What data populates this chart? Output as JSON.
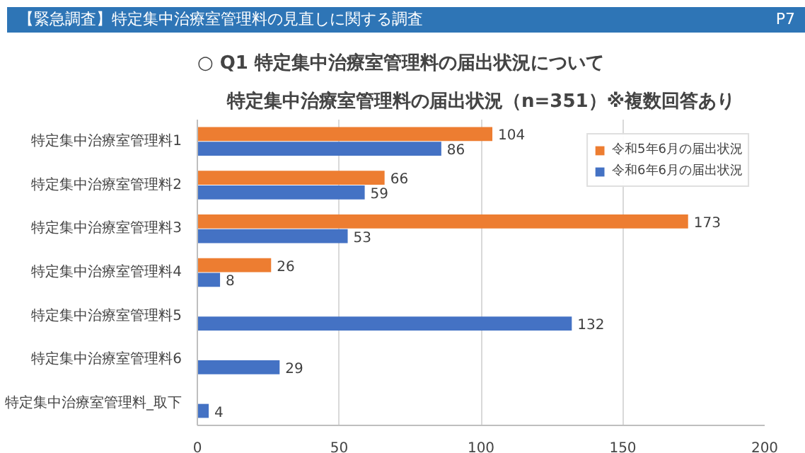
{
  "chart_data": {
    "type": "bar",
    "orientation": "horizontal",
    "title": "特定集中治療室管理料の届出状況（n=351）※複数回答あり",
    "subtitle": "○ Q1 特定集中治療室管理料の届出状況について",
    "annotations": [
      "【緊急調査】特定集中治療室管理料の見直しに関する調査",
      "P7"
    ],
    "categories": [
      "特定集中治療室管理料1",
      "特定集中治療室管理料2",
      "特定集中治療室管理料3",
      "特定集中治療室管理料4",
      "特定集中治療室管理料5",
      "特定集中治療室管理料6",
      "特定集中治療室管理料_取下"
    ],
    "series": [
      {
        "name": "令和5年6月の届出状況",
        "color": "#ed7d31",
        "values": [
          104,
          66,
          173,
          26,
          null,
          null,
          null
        ]
      },
      {
        "name": "令和6年6月の届出状況",
        "color": "#4472c4",
        "values": [
          86,
          59,
          53,
          8,
          132,
          29,
          4
        ]
      }
    ],
    "xlim": [
      0,
      200
    ],
    "xticks": [
      0,
      50,
      100,
      150,
      200
    ],
    "grid": "x",
    "legend": "top right",
    "data_labels": true
  }
}
